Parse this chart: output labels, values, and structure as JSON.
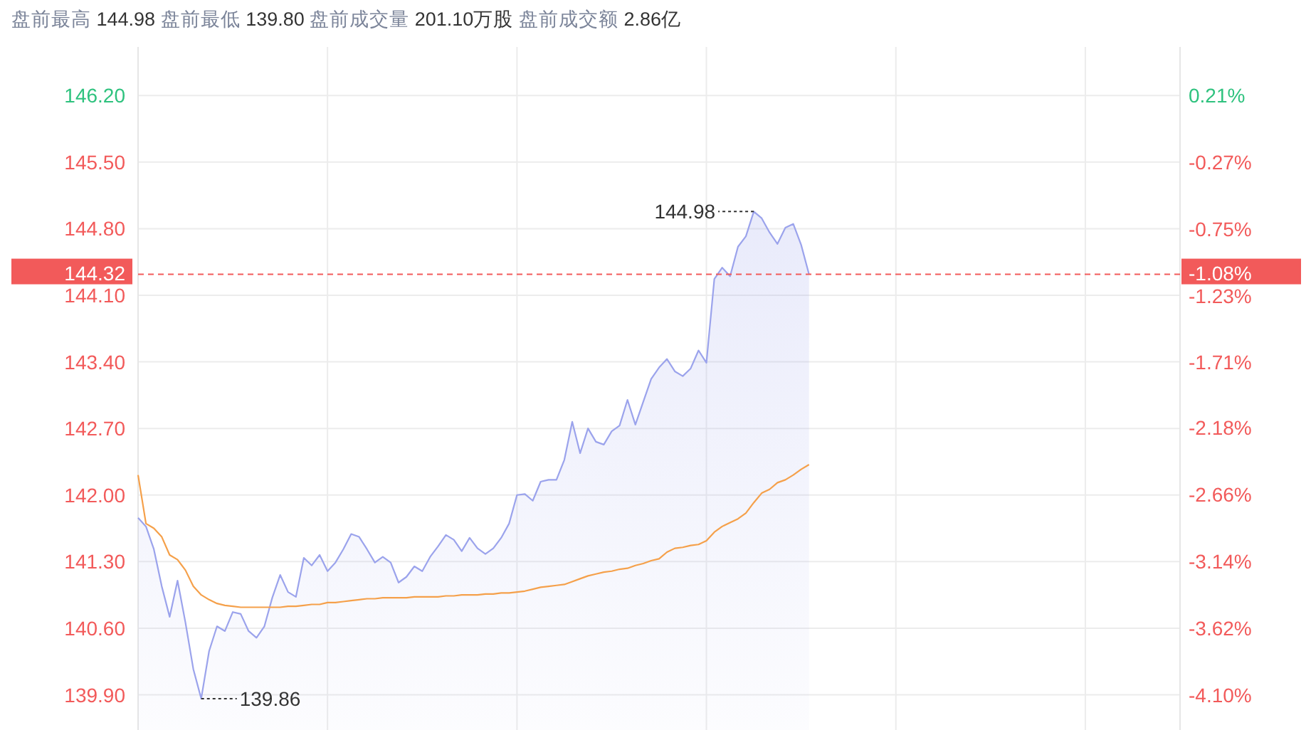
{
  "chart_data": {
    "type": "line",
    "title": "盘前最高 144.98 盘前最低 139.80 盘前成交量 201.10万股 盘前成交额 2.86亿",
    "categories": [
      null,
      null,
      null,
      null,
      null,
      null,
      null,
      null,
      null,
      null,
      null,
      null,
      null,
      null,
      null,
      null,
      null,
      null,
      null,
      null,
      null,
      null,
      null,
      null,
      null,
      null,
      null,
      null,
      null,
      null,
      null,
      null,
      null,
      null,
      null,
      null,
      null,
      null,
      null,
      null,
      null,
      null,
      null,
      null,
      null,
      null,
      null,
      null,
      null,
      null,
      null,
      null,
      null,
      null,
      null,
      null,
      null,
      null,
      null,
      null,
      null,
      null,
      null,
      null,
      null,
      null,
      null,
      null,
      null,
      null,
      null,
      null,
      null,
      null,
      null,
      null,
      null,
      null,
      null,
      null,
      null,
      null,
      null,
      null,
      null,
      null,
      null,
      null,
      null,
      null,
      null,
      null,
      null,
      null,
      null,
      null,
      null,
      null,
      null,
      null,
      null,
      null,
      null,
      null,
      null,
      null,
      null,
      null,
      null,
      null,
      null,
      null,
      null,
      null,
      null,
      null,
      null,
      null,
      null,
      null,
      null,
      null,
      null,
      null,
      null,
      null,
      null,
      null,
      null,
      null,
      null,
      null,
      null
    ],
    "series": [
      {
        "type": "area",
        "color": "#9ba3ec",
        "values": [
          141.76,
          141.67,
          141.43,
          141.04,
          140.72,
          141.1,
          140.66,
          140.17,
          139.86,
          140.36,
          140.62,
          140.57,
          140.77,
          140.75,
          140.57,
          140.5,
          140.62,
          140.92,
          141.16,
          140.98,
          140.93,
          141.34,
          141.26,
          141.37,
          141.2,
          141.29,
          141.43,
          141.59,
          141.56,
          141.43,
          141.29,
          141.35,
          141.29,
          141.08,
          141.14,
          141.25,
          141.2,
          141.35,
          141.46,
          141.58,
          141.53,
          141.41,
          141.55,
          141.44,
          141.38,
          141.44,
          141.55,
          141.7,
          142.0,
          142.01,
          141.94,
          142.14,
          142.16,
          142.16,
          142.37,
          142.77,
          142.44,
          142.7,
          142.56,
          142.53,
          142.67,
          142.73,
          143.0,
          142.74,
          142.98,
          143.22,
          143.34,
          143.43,
          143.3,
          143.25,
          143.33,
          143.52,
          143.39,
          144.27,
          144.39,
          144.3,
          144.61,
          144.72,
          144.98,
          144.91,
          144.76,
          144.64,
          144.81,
          144.85,
          144.63,
          144.32,
          null,
          null,
          null,
          null,
          null,
          null,
          null,
          null,
          null,
          null,
          null,
          null,
          null,
          null,
          null,
          null,
          null,
          null,
          null,
          null,
          null,
          null,
          null,
          null,
          null,
          null,
          null,
          null,
          null,
          null,
          null,
          null,
          null,
          null,
          null,
          null,
          null,
          null,
          null,
          null,
          null,
          null,
          null,
          null,
          null,
          null,
          null
        ]
      },
      {
        "type": "line",
        "color": "#f5a04a",
        "values": [
          142.21,
          141.7,
          141.65,
          141.56,
          141.37,
          141.32,
          141.21,
          141.04,
          140.95,
          140.9,
          140.86,
          140.84,
          140.83,
          140.82,
          140.82,
          140.82,
          140.82,
          140.82,
          140.82,
          140.83,
          140.83,
          140.84,
          140.85,
          140.85,
          140.87,
          140.87,
          140.88,
          140.89,
          140.9,
          140.91,
          140.91,
          140.92,
          140.92,
          140.92,
          140.92,
          140.93,
          140.93,
          140.93,
          140.93,
          140.94,
          140.94,
          140.95,
          140.95,
          140.95,
          140.96,
          140.96,
          140.97,
          140.97,
          140.98,
          140.99,
          141.01,
          141.03,
          141.04,
          141.05,
          141.06,
          141.09,
          141.12,
          141.15,
          141.17,
          141.19,
          141.2,
          141.22,
          141.23,
          141.26,
          141.28,
          141.31,
          141.33,
          141.4,
          141.44,
          141.45,
          141.47,
          141.48,
          141.52,
          141.61,
          141.67,
          141.71,
          141.75,
          141.81,
          141.92,
          142.02,
          142.06,
          142.13,
          142.16,
          142.21,
          142.27,
          142.32,
          null,
          null,
          null,
          null,
          null,
          null,
          null,
          null,
          null,
          null,
          null,
          null,
          null,
          null,
          null,
          null,
          null,
          null,
          null,
          null,
          null,
          null,
          null,
          null,
          null,
          null,
          null,
          null,
          null,
          null,
          null,
          null,
          null,
          null,
          null,
          null,
          null,
          null,
          null,
          null,
          null,
          null,
          null,
          null,
          null,
          null,
          null
        ]
      }
    ],
    "ylim": [
      139.53,
      146.71
    ],
    "yticks": [
      {
        "value": 139.9,
        "label": "139.90"
      },
      {
        "value": 140.6,
        "label": "140.60"
      },
      {
        "value": 141.3,
        "label": "141.30"
      },
      {
        "value": 142.0,
        "label": "142.00"
      },
      {
        "value": 142.7,
        "label": "142.70"
      },
      {
        "value": 143.4,
        "label": "143.40"
      },
      {
        "value": 144.1,
        "label": "144.10"
      },
      {
        "value": 144.8,
        "label": "144.80"
      },
      {
        "value": 145.5,
        "label": "145.50"
      },
      {
        "value": 146.2,
        "label": "146.20"
      }
    ],
    "y2lim": [
      -4.353,
      0.559
    ],
    "y2ticks": [
      {
        "value": -4.1,
        "label": "-4.10%"
      },
      {
        "value": -3.62,
        "label": "-3.62%"
      },
      {
        "value": -3.14,
        "label": "-3.14%"
      },
      {
        "value": -2.66,
        "label": "-2.66%"
      },
      {
        "value": -2.18,
        "label": "-2.18%"
      },
      {
        "value": -1.71,
        "label": "-1.71%"
      },
      {
        "value": -1.23,
        "label": "-1.23%"
      },
      {
        "value": -0.75,
        "label": "-0.75%"
      },
      {
        "value": -0.27,
        "label": "-0.27%"
      },
      {
        "value": 0.21,
        "label": "0.21%"
      }
    ],
    "ref_lines": [
      {
        "axis": "y",
        "value": 144.32,
        "label": "144.32",
        "color": "#f25a5a",
        "line_style": "dashed"
      }
    ],
    "annotations": [
      "144.98",
      "139.86",
      "-1.08%"
    ],
    "grid": true
  }
}
